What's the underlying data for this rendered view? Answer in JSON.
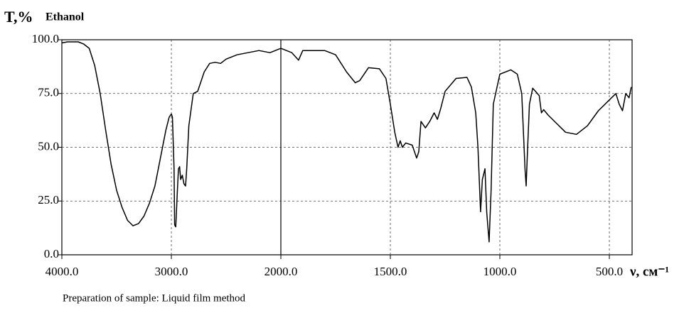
{
  "chart_data": {
    "type": "line",
    "y_label": "T,%",
    "title": "Ethanol",
    "x_label": "ν, см⁻¹",
    "note": "Preparation of sample: Liquid film method",
    "xlim": [
      4000,
      400
    ],
    "ylim": [
      0,
      100
    ],
    "xticks": [
      {
        "value": 4000,
        "label": "4000.0"
      },
      {
        "value": 3000,
        "label": "3000.0"
      },
      {
        "value": 2000,
        "label": "2000.0"
      },
      {
        "value": 1500,
        "label": "1500.0"
      },
      {
        "value": 1000,
        "label": "1000.0"
      },
      {
        "value": 500,
        "label": "500.0"
      }
    ],
    "yticks": [
      {
        "value": 0,
        "label": "0.0"
      },
      {
        "value": 25,
        "label": "25.0"
      },
      {
        "value": 50,
        "label": "50.0"
      },
      {
        "value": 75,
        "label": "75.0"
      },
      {
        "value": 100,
        "label": "100.0"
      }
    ],
    "grid": true,
    "color": "#000000",
    "x": [
      4000,
      3950,
      3850,
      3800,
      3750,
      3700,
      3650,
      3600,
      3550,
      3500,
      3450,
      3400,
      3350,
      3300,
      3250,
      3200,
      3150,
      3100,
      3050,
      3020,
      3000,
      2990,
      2975,
      2970,
      2960,
      2945,
      2935,
      2925,
      2915,
      2900,
      2885,
      2870,
      2860,
      2840,
      2800,
      2760,
      2700,
      2650,
      2600,
      2550,
      2500,
      2400,
      2300,
      2200,
      2100,
      2000,
      1950,
      1919,
      1900,
      1800,
      1750,
      1700,
      1660,
      1640,
      1600,
      1550,
      1520,
      1500,
      1480,
      1465,
      1455,
      1445,
      1430,
      1400,
      1380,
      1370,
      1360,
      1340,
      1320,
      1300,
      1285,
      1270,
      1250,
      1200,
      1150,
      1130,
      1110,
      1100,
      1088,
      1080,
      1068,
      1060,
      1049,
      1040,
      1030,
      1000,
      950,
      920,
      900,
      885,
      880,
      875,
      865,
      850,
      820,
      810,
      800,
      780,
      750,
      700,
      650,
      600,
      550,
      500,
      470,
      455,
      440,
      425,
      410,
      400
    ],
    "values": [
      98.5,
      99,
      99,
      98,
      96,
      88,
      75,
      58,
      42,
      30,
      22,
      16,
      13.5,
      14.5,
      18,
      24,
      32,
      45,
      58,
      64,
      65.5,
      64,
      40,
      14,
      13,
      30,
      40,
      41,
      35,
      37,
      33,
      32,
      40,
      60,
      75,
      76,
      85,
      89,
      89.5,
      89,
      91,
      93,
      94,
      95,
      94,
      96,
      94,
      90.5,
      95,
      95,
      93,
      85,
      80,
      81,
      87,
      86.5,
      82,
      70,
      57,
      50,
      53,
      50,
      52,
      51,
      45,
      48,
      62,
      59,
      62,
      66,
      63,
      68,
      76,
      82,
      82.5,
      78,
      66,
      50,
      20,
      35,
      40,
      20,
      6,
      30,
      70,
      84,
      86,
      84,
      75,
      40,
      32,
      45,
      70,
      77.5,
      74,
      66,
      67.5,
      65,
      62,
      57,
      56,
      60,
      67,
      72,
      75,
      70,
      67,
      75,
      73,
      78
    ]
  }
}
